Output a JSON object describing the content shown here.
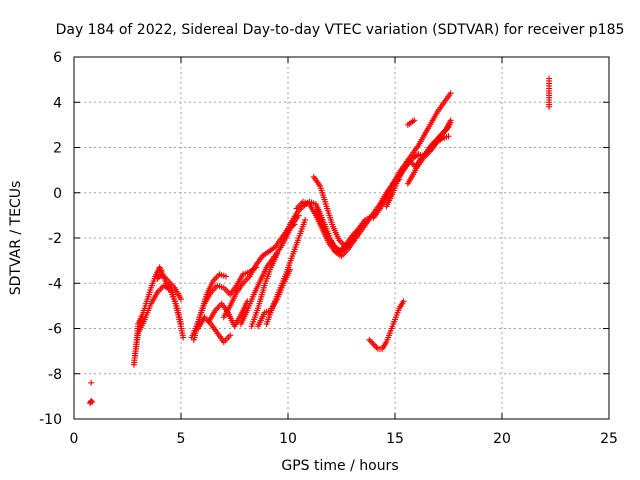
{
  "chart_data": {
    "type": "scatter",
    "title": "Day 184 of 2022, Sidereal Day-to-day VTEC variation (SDTVAR) for receiver p185",
    "xlabel": "GPS time / hours",
    "ylabel": "SDTVAR / TECUs",
    "xlim": [
      0,
      25
    ],
    "ylim": [
      -10,
      6
    ],
    "xticks": [
      "0",
      "5",
      "10",
      "15",
      "20",
      "25"
    ],
    "yticks": [
      "-10",
      "-8",
      "-6",
      "-4",
      "-2",
      "0",
      "2",
      "4",
      "6"
    ],
    "grid": true,
    "marker": "plus",
    "color": "#ff0000",
    "tracks": [
      {
        "x": [
          0.75,
          0.8,
          0.85
        ],
        "y": [
          -9.3,
          -9.2,
          -9.25
        ]
      },
      {
        "x": [
          0.8
        ],
        "y": [
          -8.4
        ]
      },
      {
        "x": [
          2.8,
          2.9,
          3.0,
          3.2,
          3.4,
          3.6,
          3.8,
          4.0,
          4.1,
          4.3,
          4.6,
          4.9,
          5.1
        ],
        "y": [
          -7.6,
          -6.8,
          -5.8,
          -5.4,
          -4.8,
          -4.2,
          -3.7,
          -3.3,
          -3.5,
          -4.0,
          -4.4,
          -5.5,
          -6.4
        ]
      },
      {
        "x": [
          2.85,
          3.0,
          3.3,
          3.6,
          3.9,
          4.2,
          4.5,
          4.8,
          5.0
        ],
        "y": [
          -7.2,
          -6.2,
          -5.6,
          -4.9,
          -4.4,
          -4.1,
          -4.3,
          -5.0,
          -5.8
        ]
      },
      {
        "x": [
          3.9,
          4.1,
          4.4,
          4.7,
          5.0
        ],
        "y": [
          -3.8,
          -3.6,
          -3.9,
          -4.2,
          -4.7
        ]
      },
      {
        "x": [
          5.5,
          5.8,
          6.1,
          6.4,
          6.7,
          7.0,
          7.3,
          7.6,
          7.9,
          8.2,
          8.5
        ],
        "y": [
          -6.4,
          -5.7,
          -4.9,
          -4.4,
          -4.1,
          -4.2,
          -4.5,
          -4.1,
          -3.6,
          -3.5,
          -3.3
        ]
      },
      {
        "x": [
          5.6,
          5.9,
          6.2,
          6.5,
          6.8,
          7.1
        ],
        "y": [
          -6.5,
          -5.4,
          -4.5,
          -3.9,
          -3.6,
          -3.7
        ]
      },
      {
        "x": [
          5.8,
          6.1,
          6.4,
          6.7,
          7.0,
          7.3
        ],
        "y": [
          -6.0,
          -5.5,
          -5.8,
          -6.2,
          -6.6,
          -6.3
        ]
      },
      {
        "x": [
          6.3,
          6.6,
          6.9,
          7.2,
          7.5,
          7.8,
          8.1
        ],
        "y": [
          -5.7,
          -5.2,
          -4.9,
          -5.3,
          -5.9,
          -5.4,
          -4.8
        ]
      },
      {
        "x": [
          7.0,
          7.3,
          7.6,
          7.9,
          8.2,
          8.5,
          8.8,
          9.1,
          9.4,
          9.7,
          10.0,
          10.3
        ],
        "y": [
          -5.5,
          -5.0,
          -4.4,
          -4.0,
          -3.7,
          -3.2,
          -2.8,
          -2.6,
          -2.4,
          -2.0,
          -1.6,
          -1.4
        ]
      },
      {
        "x": [
          7.8,
          8.1,
          8.4,
          8.7,
          9.0,
          9.3,
          9.6,
          9.9,
          10.2,
          10.5
        ],
        "y": [
          -5.8,
          -5.2,
          -4.5,
          -3.9,
          -3.3,
          -2.9,
          -2.5,
          -2.0,
          -1.4,
          -1.0
        ]
      },
      {
        "x": [
          8.3,
          8.6,
          8.9,
          9.2,
          9.5
        ],
        "y": [
          -5.9,
          -5.1,
          -4.1,
          -3.3,
          -2.7
        ]
      },
      {
        "x": [
          8.6,
          8.9,
          9.2,
          9.5,
          9.8,
          10.1
        ],
        "y": [
          -5.9,
          -5.3,
          -5.2,
          -4.7,
          -4.0,
          -3.4
        ]
      },
      {
        "x": [
          9.0,
          9.3,
          9.6,
          9.9,
          10.2,
          10.5,
          10.8
        ],
        "y": [
          -5.8,
          -5.0,
          -4.3,
          -3.6,
          -2.8,
          -2.0,
          -1.2
        ]
      },
      {
        "x": [
          9.8,
          10.1,
          10.4,
          10.7,
          11.0,
          11.3,
          11.5,
          11.8,
          12.1,
          12.4,
          12.7,
          13.0,
          13.3,
          13.6,
          14.0
        ],
        "y": [
          -2.0,
          -1.4,
          -0.9,
          -0.6,
          -0.4,
          -0.5,
          -0.9,
          -1.6,
          -2.3,
          -2.6,
          -2.3,
          -1.9,
          -1.6,
          -1.2,
          -1.0
        ]
      },
      {
        "x": [
          10.4,
          10.7,
          11.0,
          11.3,
          11.6,
          11.9,
          12.2,
          12.5,
          12.8,
          13.1,
          13.4,
          13.7,
          14.0,
          14.3,
          14.6,
          14.9,
          15.2
        ],
        "y": [
          -0.7,
          -0.4,
          -0.5,
          -1.0,
          -1.6,
          -2.2,
          -2.6,
          -2.8,
          -2.5,
          -2.1,
          -1.7,
          -1.3,
          -0.9,
          -0.5,
          0.0,
          0.4,
          0.6
        ]
      },
      {
        "x": [
          11.2,
          11.5,
          11.8,
          12.1,
          12.4,
          12.7,
          13.0,
          13.3,
          13.6
        ],
        "y": [
          0.7,
          0.3,
          -0.6,
          -1.5,
          -2.1,
          -2.4,
          -2.1,
          -1.6,
          -1.3
        ]
      },
      {
        "x": [
          11.3,
          11.6,
          11.9,
          12.2,
          12.5,
          12.8,
          13.1
        ],
        "y": [
          -0.8,
          -1.4,
          -2.0,
          -2.4,
          -2.6,
          -2.3,
          -1.9
        ]
      },
      {
        "x": [
          13.8,
          14.0,
          14.2,
          14.4,
          14.6,
          14.8,
          15.0,
          15.2,
          15.4
        ],
        "y": [
          -6.5,
          -6.7,
          -6.9,
          -6.9,
          -6.6,
          -6.1,
          -5.6,
          -5.1,
          -4.8
        ]
      },
      {
        "x": [
          14.0,
          14.3,
          14.6,
          14.9,
          15.2,
          15.5,
          15.8,
          16.1,
          16.4,
          16.7,
          17.0,
          17.3,
          17.6
        ],
        "y": [
          -1.1,
          -0.7,
          -0.2,
          0.4,
          0.9,
          1.3,
          1.7,
          2.1,
          2.6,
          3.1,
          3.6,
          4.0,
          4.4
        ]
      },
      {
        "x": [
          14.6,
          14.9,
          15.2,
          15.5,
          15.8,
          16.1,
          16.4,
          16.7,
          17.0,
          17.3,
          17.6
        ],
        "y": [
          -0.6,
          0.0,
          0.7,
          1.2,
          1.5,
          1.7,
          1.6,
          1.9,
          2.3,
          2.7,
          3.1
        ]
      },
      {
        "x": [
          15.1,
          15.4,
          15.7,
          16.0,
          16.3,
          16.6,
          16.9,
          17.2,
          17.5
        ],
        "y": [
          0.6,
          1.0,
          1.4,
          1.1,
          1.5,
          2.0,
          2.3,
          2.6,
          2.9
        ]
      },
      {
        "x": [
          15.6,
          15.9,
          16.2,
          16.5,
          16.8,
          17.1,
          17.4,
          17.6
        ],
        "y": [
          0.4,
          0.9,
          1.5,
          1.8,
          2.1,
          2.5,
          2.8,
          3.2
        ]
      },
      {
        "x": [
          16.0,
          16.3,
          16.6,
          16.9,
          17.2,
          17.5
        ],
        "y": [
          1.2,
          1.6,
          1.9,
          2.2,
          2.4,
          2.5
        ]
      },
      {
        "x": [
          15.6,
          15.75,
          15.9
        ],
        "y": [
          3.0,
          3.1,
          3.2
        ]
      },
      {
        "x": [
          22.2,
          22.2,
          22.2,
          22.2
        ],
        "y": [
          5.05,
          4.5,
          3.9,
          3.8
        ]
      }
    ]
  }
}
